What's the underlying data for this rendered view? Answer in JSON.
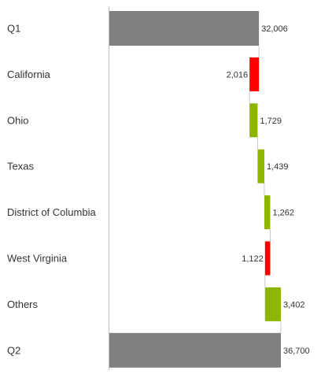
{
  "chart_data": {
    "type": "bar",
    "orientation": "horizontal-waterfall",
    "categories": [
      "Q1",
      "California",
      "Ohio",
      "Texas",
      "District of Columbia",
      "West Virginia",
      "Others",
      "Q2"
    ],
    "values": [
      32006,
      -2016,
      1729,
      1439,
      1262,
      -1122,
      3402,
      36700
    ],
    "value_labels": [
      "32,006",
      "2,016",
      "1,729",
      "1,439",
      "1,262",
      "1,122",
      "3,402",
      "36,700"
    ],
    "kinds": [
      "total",
      "delta",
      "delta",
      "delta",
      "delta",
      "delta",
      "delta",
      "total"
    ],
    "xlim": [
      0,
      36700
    ],
    "colors": {
      "total": "#808080",
      "increase": "#8db600",
      "decrease": "#ff0000",
      "connector": "#c8c8c8",
      "axis": "#c0c0c0"
    },
    "grid": false,
    "legend": "none"
  }
}
